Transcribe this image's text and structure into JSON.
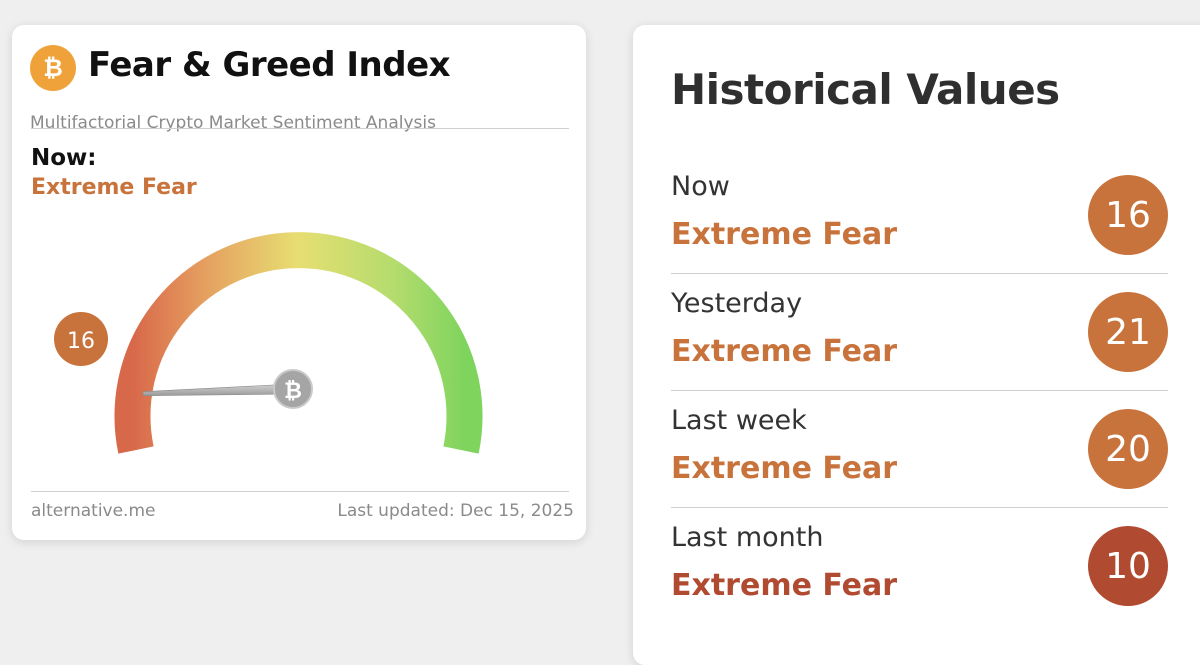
{
  "fear_greed": {
    "title": "Fear & Greed Index",
    "subtitle": "Multifactorial Crypto Market Sentiment Analysis",
    "now_label": "Now:",
    "now_classification": "Extreme Fear",
    "value": "16",
    "gauge_value": 16,
    "gauge_max": 100,
    "footer_source": "alternative.me",
    "footer_updated": "Last updated: Dec 15, 2025",
    "logo_icon": "bitcoin-icon",
    "accent_color": "#c8733b"
  },
  "historical": {
    "title": "Historical Values",
    "rows": [
      {
        "period": "Now",
        "classification": "Extreme Fear",
        "value": "16",
        "color": "#c8733b"
      },
      {
        "period": "Yesterday",
        "classification": "Extreme Fear",
        "value": "21",
        "color": "#c8733b"
      },
      {
        "period": "Last week",
        "classification": "Extreme Fear",
        "value": "20",
        "color": "#c8733b"
      },
      {
        "period": "Last month",
        "classification": "Extreme Fear",
        "value": "10",
        "color": "#b04a30"
      }
    ]
  }
}
